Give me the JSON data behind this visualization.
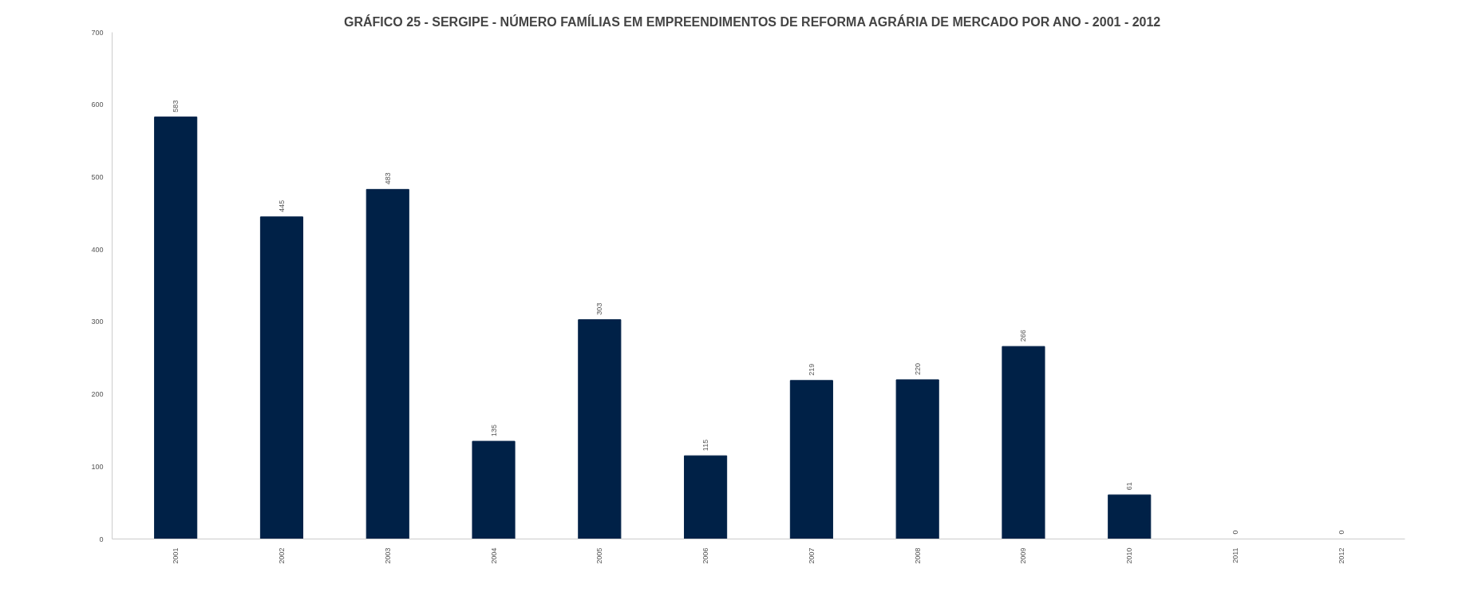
{
  "chart_data": {
    "type": "bar",
    "title": "GRÁFICO 25 - SERGIPE - NÚMERO FAMÍLIAS EM  EMPREENDIMENTOS  DE REFORMA AGRÁRIA DE MERCADO  POR ANO - 2001 - 2012",
    "categories": [
      "2001",
      "2002",
      "2003",
      "2004",
      "2005",
      "2006",
      "2007",
      "2008",
      "2009",
      "2010",
      "2011",
      "2012"
    ],
    "values": [
      583,
      445,
      483,
      135,
      303,
      115,
      219,
      220,
      266,
      61,
      0,
      0
    ],
    "color": "#002147",
    "ylim": [
      0,
      700
    ],
    "yticks": [
      0,
      100,
      200,
      300,
      400,
      500,
      600,
      700
    ],
    "grid": false,
    "data_labels": true
  }
}
